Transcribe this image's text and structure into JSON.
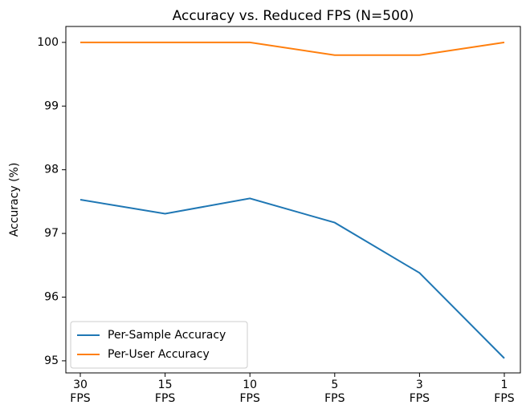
{
  "chart_data": {
    "type": "line",
    "title": "Accuracy vs. Reduced FPS (N=500)",
    "y_label": "Accuracy (%)",
    "categories": [
      "30\nFPS",
      "15\nFPS",
      "10\nFPS",
      "5\nFPS",
      "3\nFPS",
      "1\nFPS"
    ],
    "series": [
      {
        "name": "Per-Sample Accuracy",
        "color": "#1f77b4",
        "values": [
          97.53,
          97.31,
          97.55,
          97.17,
          96.38,
          95.04
        ]
      },
      {
        "name": "Per-User Accuracy",
        "color": "#ff7f0e",
        "values": [
          100,
          100,
          100,
          99.8,
          99.8,
          100
        ]
      }
    ],
    "ylim": [
      94.81,
      100.25
    ],
    "yticks": [
      95,
      96,
      97,
      98,
      99,
      100
    ],
    "legend": "lower left"
  }
}
